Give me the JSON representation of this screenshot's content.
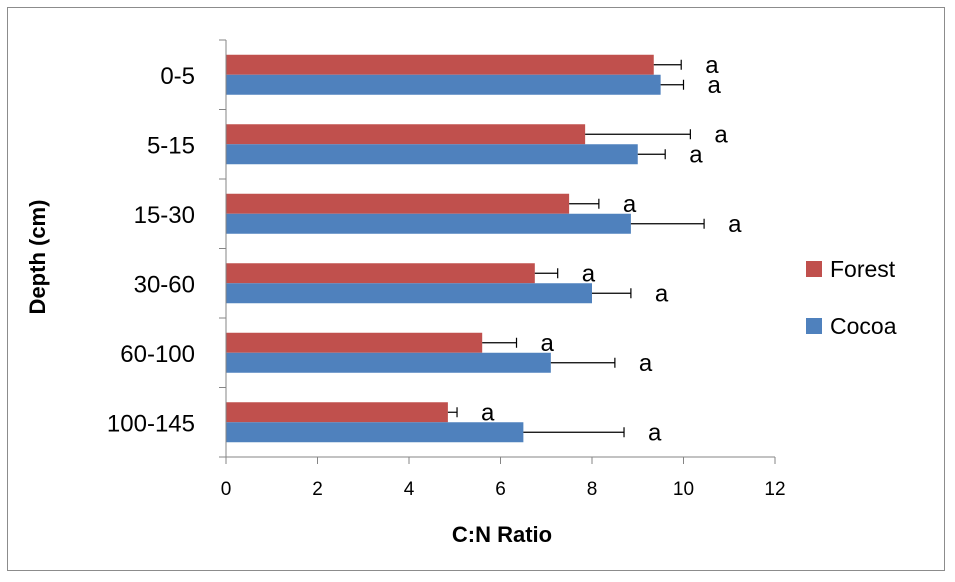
{
  "chart_data": {
    "type": "bar",
    "orientation": "horizontal",
    "title": "",
    "xlabel": "C:N Ratio",
    "ylabel": "Depth (cm)",
    "xlim": [
      0,
      12
    ],
    "xticks": [
      "0",
      "2",
      "4",
      "6",
      "8",
      "10",
      "12"
    ],
    "grid": false,
    "legend_position": "right",
    "categories": [
      "0-5",
      "5-15",
      "15-30",
      "30-60",
      "60-100",
      "100-145"
    ],
    "series": [
      {
        "name": "Forest",
        "color": "#c0504d",
        "values": [
          9.35,
          7.85,
          7.5,
          6.75,
          5.6,
          4.85
        ],
        "errors": [
          0.6,
          2.3,
          0.65,
          0.5,
          0.75,
          0.2
        ],
        "labels": [
          "a",
          "a",
          "a",
          "a",
          "a",
          "a"
        ]
      },
      {
        "name": "Cocoa",
        "color": "#4f81bd",
        "values": [
          9.5,
          9.0,
          8.85,
          8.0,
          7.1,
          6.5
        ],
        "errors": [
          0.5,
          0.6,
          1.6,
          0.85,
          1.4,
          2.2
        ],
        "labels": [
          "a",
          "a",
          "a",
          "a",
          "a",
          "a"
        ]
      }
    ]
  }
}
